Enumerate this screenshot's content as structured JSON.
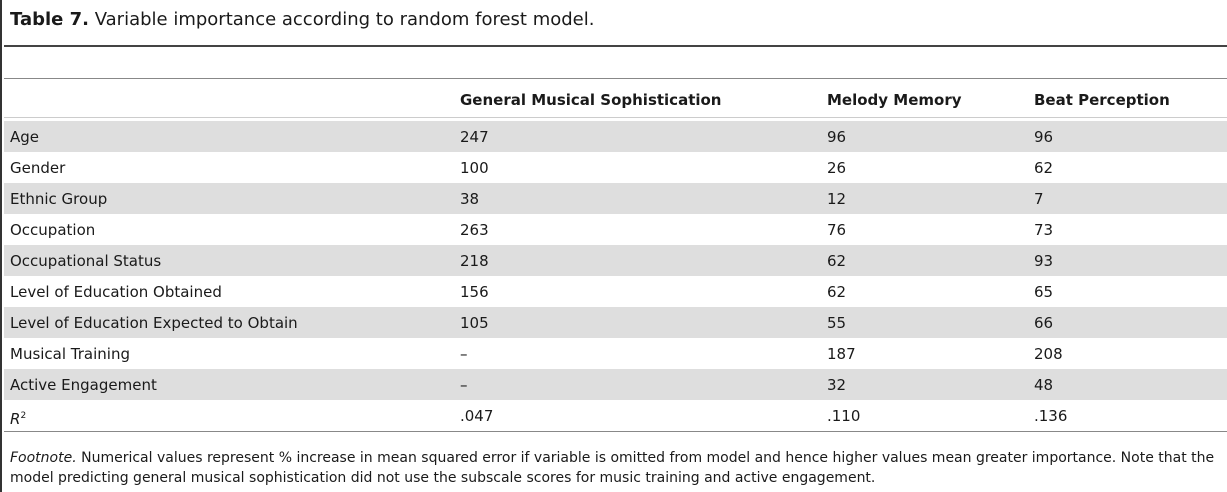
{
  "caption": {
    "label": "Table 7.",
    "text": " Variable importance according to random forest model."
  },
  "table": {
    "columns": [
      "",
      "General Musical Sophistication",
      "Melody Memory",
      "Beat Perception"
    ],
    "rows": [
      {
        "variable": "Age",
        "gms": "247",
        "mm": "96",
        "bp": "96"
      },
      {
        "variable": "Gender",
        "gms": "100",
        "mm": "26",
        "bp": "62"
      },
      {
        "variable": "Ethnic Group",
        "gms": "38",
        "mm": "12",
        "bp": "7"
      },
      {
        "variable": "Occupation",
        "gms": "263",
        "mm": "76",
        "bp": "73"
      },
      {
        "variable": "Occupational Status",
        "gms": "218",
        "mm": "62",
        "bp": "93"
      },
      {
        "variable": "Level of Education Obtained",
        "gms": "156",
        "mm": "62",
        "bp": "65"
      },
      {
        "variable": "Level of Education Expected to Obtain",
        "gms": "105",
        "mm": "55",
        "bp": "66"
      },
      {
        "variable": "Musical Training",
        "gms": "–",
        "mm": "187",
        "bp": "208"
      },
      {
        "variable": "Active Engagement",
        "gms": "–",
        "mm": "32",
        "bp": "48"
      }
    ],
    "r2_row": {
      "label_base": "R",
      "label_sup": "2",
      "gms": ".047",
      "mm": ".110",
      "bp": ".136"
    }
  },
  "footnote": {
    "label": "Footnote.",
    "text": " Numerical values represent % increase in mean squared error if variable is omitted from model and hence higher values mean greater importance. Note that the model predicting general musical sophistication did not use the subscale scores for music training and active engagement."
  }
}
